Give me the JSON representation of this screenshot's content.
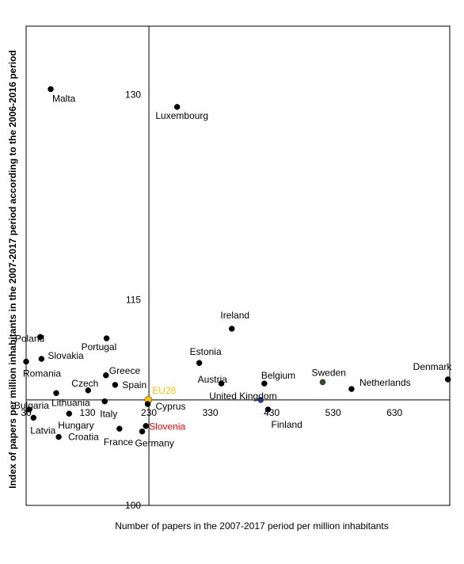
{
  "chart_data": {
    "type": "scatter",
    "title": "",
    "xlabel": "Number of  papers in the 2007-2017 period per million inhabitants",
    "ylabel": "Index of papers per million inhabitants in the 2007-2017 period according to the 2006-2016 period",
    "xlim": [
      30,
      720
    ],
    "ylim": [
      100,
      135
    ],
    "xticks": [
      30,
      130,
      230,
      330,
      430,
      530,
      630
    ],
    "yticks": [
      100,
      115,
      130
    ],
    "xcross": 230,
    "ycross": 107.7,
    "grid": false,
    "legend": "none",
    "points": [
      {
        "name": "Malta",
        "x": 70,
        "y": 130.4,
        "color": "#000000",
        "label_color": "#000000"
      },
      {
        "name": "Luxembourg",
        "x": 276,
        "y": 129.1,
        "color": "#000000",
        "label_color": "#000000"
      },
      {
        "name": "Ireland",
        "x": 365,
        "y": 112.9,
        "color": "#000000",
        "label_color": "#000000"
      },
      {
        "name": "Poland",
        "x": 53,
        "y": 112.3,
        "color": "#000000",
        "label_color": "#000000"
      },
      {
        "name": "Portugal",
        "x": 161,
        "y": 112.2,
        "color": "#000000",
        "label_color": "#000000"
      },
      {
        "name": "Slovakia",
        "x": 55,
        "y": 110.7,
        "color": "#000000",
        "label_color": "#000000"
      },
      {
        "name": "Romania",
        "x": 30,
        "y": 110.5,
        "color": "#000000",
        "label_color": "#000000"
      },
      {
        "name": "Estonia",
        "x": 312,
        "y": 110.4,
        "color": "#000000",
        "label_color": "#000000"
      },
      {
        "name": "Greece",
        "x": 160,
        "y": 109.5,
        "color": "#000000",
        "label_color": "#000000"
      },
      {
        "name": "Spain",
        "x": 175,
        "y": 108.8,
        "color": "#000000",
        "label_color": "#000000"
      },
      {
        "name": "Austria",
        "x": 348,
        "y": 108.9,
        "color": "#000000",
        "label_color": "#000000"
      },
      {
        "name": "Belgium",
        "x": 418,
        "y": 108.9,
        "color": "#000000",
        "label_color": "#000000"
      },
      {
        "name": "Sweden",
        "x": 513,
        "y": 109.0,
        "color": "#2f4f2f",
        "label_color": "#000000"
      },
      {
        "name": "Denmark",
        "x": 717,
        "y": 109.2,
        "color": "#000000",
        "label_color": "#000000"
      },
      {
        "name": "Netherlands",
        "x": 560,
        "y": 108.5,
        "color": "#000000",
        "label_color": "#000000"
      },
      {
        "name": "Czech",
        "x": 131,
        "y": 108.4,
        "color": "#000000",
        "label_color": "#000000"
      },
      {
        "name": "Lithuania",
        "x": 79,
        "y": 108.2,
        "color": "#000000",
        "label_color": "#000000"
      },
      {
        "name": "EU28",
        "x": 229,
        "y": 107.7,
        "color": "#ffc000",
        "label_color": "#ffc000"
      },
      {
        "name": "Italy",
        "x": 158,
        "y": 107.6,
        "color": "#000000",
        "label_color": "#000000"
      },
      {
        "name": "United Kingdom",
        "x": 412,
        "y": 107.7,
        "color": "#1f3fa0",
        "label_color": "#000000"
      },
      {
        "name": "Cyprus",
        "x": 228,
        "y": 107.4,
        "color": "#000000",
        "label_color": "#000000"
      },
      {
        "name": "Bulgaria",
        "x": 35,
        "y": 107.0,
        "color": "#000000",
        "label_color": "#000000"
      },
      {
        "name": "Finland",
        "x": 424,
        "y": 107.0,
        "color": "#000000",
        "label_color": "#000000"
      },
      {
        "name": "Hungary",
        "x": 100,
        "y": 106.7,
        "color": "#000000",
        "label_color": "#000000"
      },
      {
        "name": "Latvia",
        "x": 42,
        "y": 106.4,
        "color": "#000000",
        "label_color": "#000000"
      },
      {
        "name": "Slovenia",
        "x": 225,
        "y": 105.8,
        "color": "#000000",
        "label_color": "#ff0000"
      },
      {
        "name": "France",
        "x": 182,
        "y": 105.6,
        "color": "#000000",
        "label_color": "#000000"
      },
      {
        "name": "Germany",
        "x": 219,
        "y": 105.4,
        "color": "#000000",
        "label_color": "#000000"
      },
      {
        "name": "Croatia",
        "x": 83,
        "y": 105.0,
        "color": "#000000",
        "label_color": "#000000"
      }
    ]
  }
}
